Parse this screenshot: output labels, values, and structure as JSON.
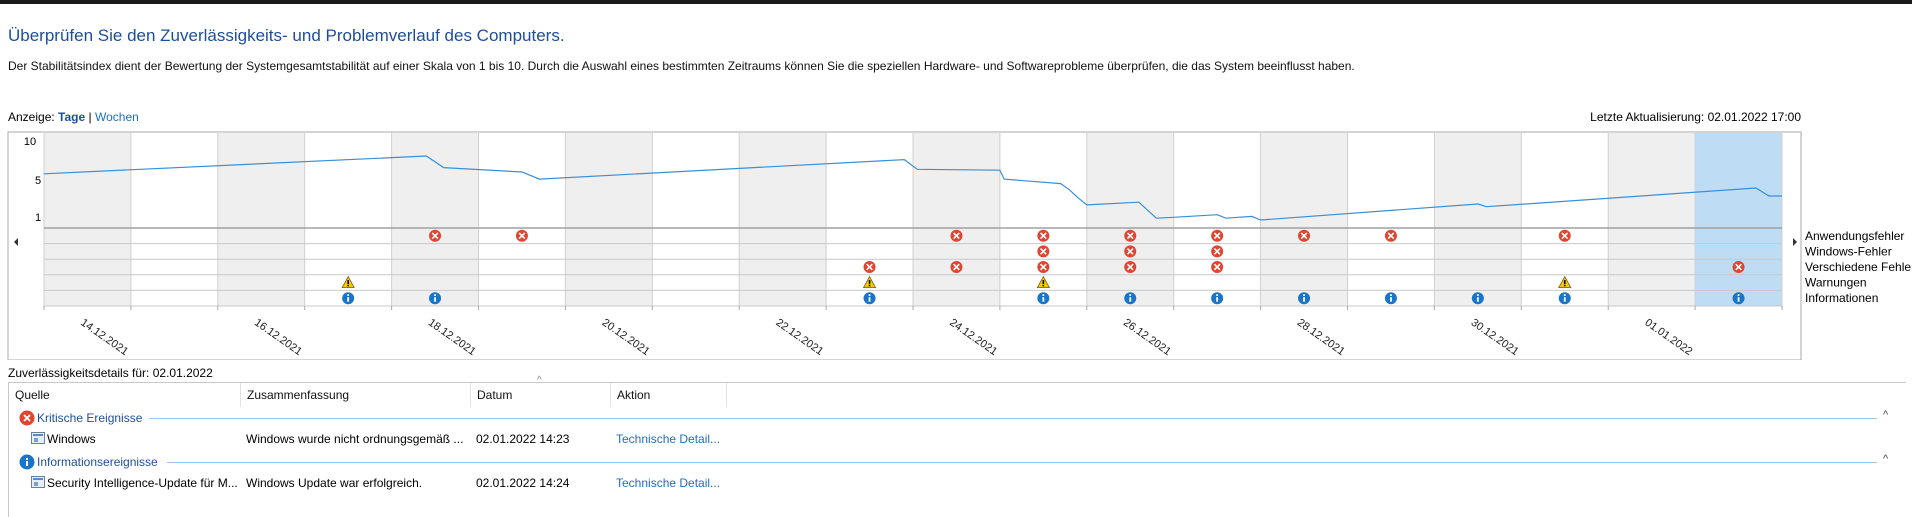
{
  "header": {
    "title": "Überprüfen Sie den Zuverlässigkeits- und Problemverlauf des Computers.",
    "description": "Der Stabilitätsindex dient der Bewertung der Systemgesamtstabilität auf einer Skala von 1 bis 10. Durch die Auswahl eines bestimmten Zeitraums können Sie die speziellen Hardware- und Softwareprobleme überprüfen, die das System beeinflusst haben."
  },
  "view": {
    "label": "Anzeige:",
    "days": "Tage",
    "separator": "|",
    "weeks": "Wochen",
    "last_update": "Letzte Aktualisierung: 02.01.2022 17:00"
  },
  "chart_data": {
    "type": "line",
    "y_ticks": [
      "10",
      "5",
      "1"
    ],
    "ylim": [
      1,
      10
    ],
    "columns": 20,
    "selected_column": 19,
    "date_labels": [
      {
        "column": 0,
        "text": "14.12.2021"
      },
      {
        "column": 2,
        "text": "16.12.2021"
      },
      {
        "column": 4,
        "text": "18.12.2021"
      },
      {
        "column": 6,
        "text": "20.12.2021"
      },
      {
        "column": 8,
        "text": "22.12.2021"
      },
      {
        "column": 10,
        "text": "24.12.2021"
      },
      {
        "column": 12,
        "text": "26.12.2021"
      },
      {
        "column": 14,
        "text": "28.12.2021"
      },
      {
        "column": 16,
        "text": "30.12.2021"
      },
      {
        "column": 18,
        "text": "01.01.2022"
      }
    ],
    "stability_points": [
      [
        0,
        6.2
      ],
      [
        4.4,
        8.2
      ],
      [
        4.6,
        6.9
      ],
      [
        5.5,
        6.4
      ],
      [
        5.7,
        5.6
      ],
      [
        9.9,
        7.8
      ],
      [
        10.05,
        6.7
      ],
      [
        11.0,
        6.6
      ],
      [
        11.05,
        5.6
      ],
      [
        11.7,
        5.1
      ],
      [
        11.8,
        4.4
      ],
      [
        11.9,
        3.5
      ],
      [
        12.0,
        2.7
      ],
      [
        12.6,
        3.0
      ],
      [
        12.7,
        2.1
      ],
      [
        12.8,
        1.2
      ],
      [
        13.0,
        1.3
      ],
      [
        13.5,
        1.6
      ],
      [
        13.6,
        1.2
      ],
      [
        13.9,
        1.4
      ],
      [
        14.0,
        1.0
      ],
      [
        16.5,
        2.8
      ],
      [
        16.6,
        2.5
      ],
      [
        19.7,
        4.6
      ],
      [
        19.85,
        3.7
      ],
      [
        20,
        3.7
      ]
    ],
    "rows": [
      "Anwendungsfehler",
      "Windows-Fehler",
      "Verschiedene Fehler",
      "Warnungen",
      "Informationen"
    ],
    "events": {
      "Anwendungsfehler": [
        4,
        5,
        10,
        11,
        12,
        13,
        14,
        15,
        17
      ],
      "Windows-Fehler": [
        11,
        12,
        13
      ],
      "Verschiedene Fehler": [
        9,
        10,
        11,
        12,
        13,
        19
      ],
      "Warnungen": [
        3,
        9,
        11,
        17
      ],
      "Informationen": [
        3,
        4,
        9,
        11,
        12,
        13,
        14,
        15,
        16,
        17,
        19
      ]
    },
    "colors": {
      "line": "#3a8fd6",
      "grey_band": "#efefef",
      "selected": "#bfdcf5",
      "error": "#e0452f",
      "warning": "#f5c518",
      "info": "#1a75c8"
    }
  },
  "details": {
    "label": "Zuverlässigkeitsdetails für: 02.01.2022",
    "columns": [
      "Quelle",
      "Zusammenfassung",
      "Datum",
      "Aktion"
    ],
    "sort_indicator": "^",
    "groups": [
      {
        "title": "Kritische Ereignisse",
        "icon": "error-icon",
        "collapse": "^",
        "rows": [
          {
            "source": "Windows",
            "summary": "Windows wurde nicht ordnungsgemäß ...",
            "date": "02.01.2022 14:23",
            "action": "Technische Detail..."
          }
        ]
      },
      {
        "title": "Informationsereignisse",
        "icon": "info-icon",
        "collapse": "^",
        "rows": [
          {
            "source": "Security Intelligence-Update für M...",
            "summary": "Windows Update war erfolgreich.",
            "date": "02.01.2022 14:24",
            "action": "Technische Detail..."
          }
        ]
      }
    ]
  }
}
